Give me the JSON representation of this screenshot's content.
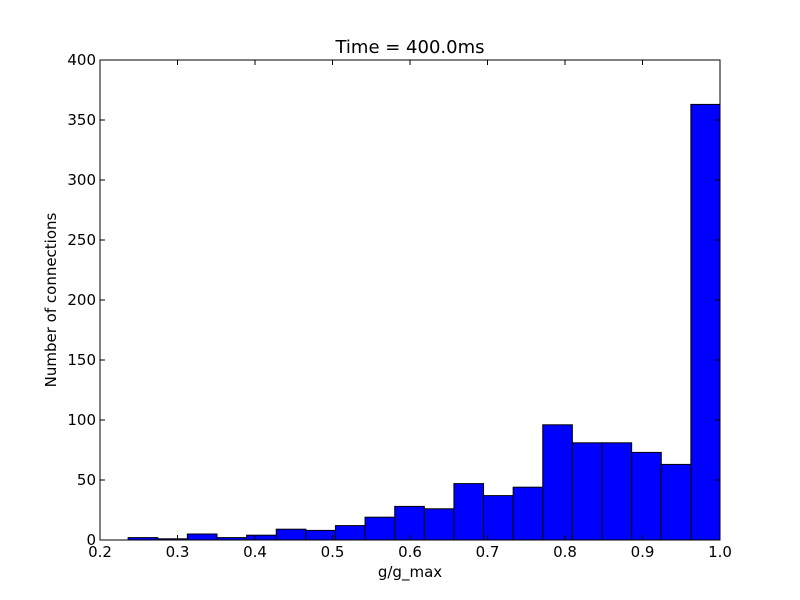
{
  "chart_data": {
    "type": "bar",
    "title": "Time = 400.0ms",
    "xlabel": "g/g_max",
    "ylabel": "Number of connections",
    "xlim": [
      0.2,
      1.0
    ],
    "ylim": [
      0,
      400
    ],
    "xticks": [
      "0.2",
      "0.3",
      "0.4",
      "0.5",
      "0.6",
      "0.7",
      "0.8",
      "0.9",
      "1.0"
    ],
    "yticks": [
      "0",
      "50",
      "100",
      "150",
      "200",
      "250",
      "300",
      "350",
      "400"
    ],
    "bin_edges": [
      0.2363,
      0.2745,
      0.3127,
      0.351,
      0.3892,
      0.4274,
      0.4656,
      0.5038,
      0.542,
      0.5803,
      0.6185,
      0.6567,
      0.6949,
      0.7331,
      0.7713,
      0.8095,
      0.8478,
      0.886,
      0.9242,
      0.9624,
      1.0006
    ],
    "values": [
      2,
      1,
      5,
      2,
      4,
      9,
      8,
      12,
      19,
      28,
      26,
      47,
      37,
      44,
      96,
      81,
      81,
      73,
      63,
      363
    ],
    "bar_color": "#0000ff",
    "edge_color": "#000000",
    "grid": false
  }
}
